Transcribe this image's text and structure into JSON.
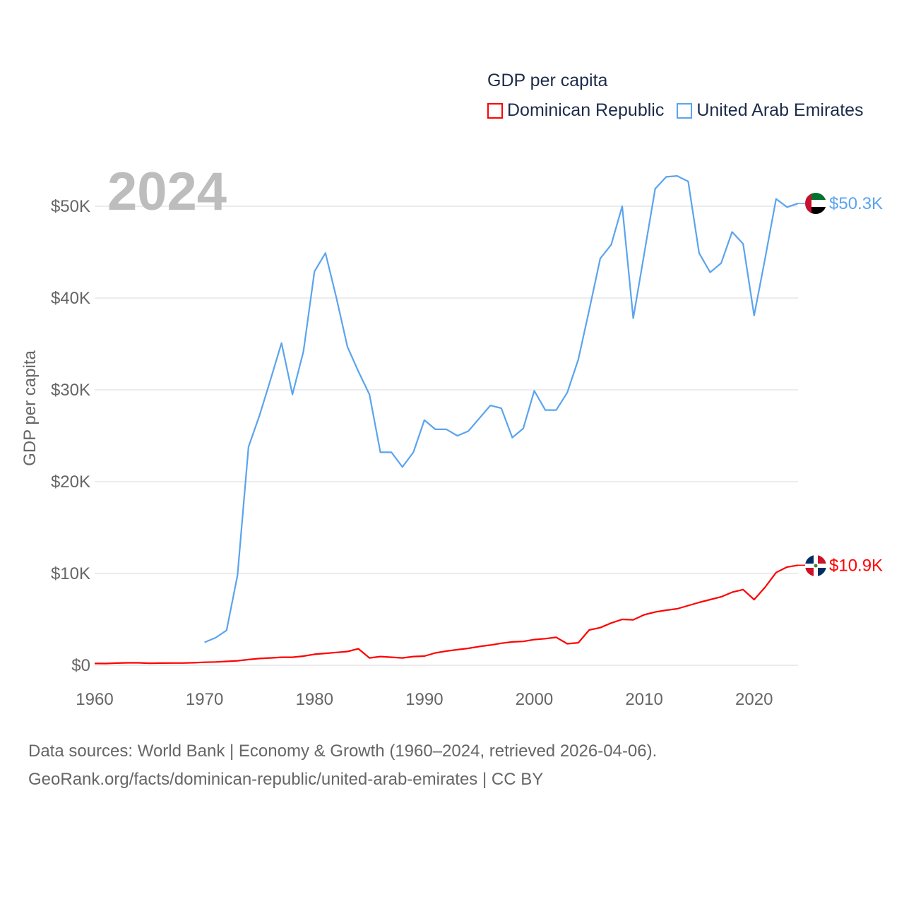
{
  "legend": {
    "title": "GDP per capita",
    "items": [
      {
        "label": "Dominican Republic",
        "color": "#ff0000"
      },
      {
        "label": "United Arab Emirates",
        "color": "#5aa4ee"
      }
    ]
  },
  "year_label": "2024",
  "footer": {
    "line1": "Data sources: World Bank | Economy & Growth (1960–2024, retrieved 2026-04-06).",
    "line2": "GeoRank.org/facts/dominican-republic/united-arab-emirates | CC BY"
  },
  "chart_data": {
    "type": "line",
    "title": "GDP per capita",
    "xlabel": "",
    "ylabel": "GDP per capita",
    "xlim": [
      1960,
      2024
    ],
    "ylim": [
      0,
      55000
    ],
    "grid": true,
    "legend_position": "top-right",
    "x_ticks": [
      1960,
      1970,
      1980,
      1990,
      2000,
      2010,
      2020
    ],
    "x_tick_labels": [
      "1960",
      "1970",
      "1980",
      "1990",
      "2000",
      "2010",
      "2020"
    ],
    "y_ticks": [
      0,
      10000,
      20000,
      30000,
      40000,
      50000
    ],
    "y_tick_labels": [
      "$0",
      "$10K",
      "$20K",
      "$30K",
      "$40K",
      "$50K"
    ],
    "series": [
      {
        "name": "Dominican Republic",
        "color": "#ff0000",
        "end_label": "$10.9K",
        "start_year": 1960,
        "values": [
          200,
          190,
          240,
          270,
          270,
          220,
          240,
          250,
          250,
          280,
          330,
          360,
          420,
          490,
          620,
          740,
          800,
          880,
          880,
          1000,
          1200,
          1300,
          1400,
          1500,
          1800,
          800,
          950,
          880,
          800,
          950,
          1000,
          1350,
          1550,
          1700,
          1850,
          2050,
          2200,
          2400,
          2550,
          2600,
          2800,
          2900,
          3050,
          2350,
          2450,
          3850,
          4100,
          4600,
          5000,
          4950,
          5500,
          5800,
          6000,
          6150,
          6500,
          6850,
          7150,
          7450,
          7950,
          8250,
          7150,
          8500,
          10100,
          10700,
          10900
        ]
      },
      {
        "name": "United Arab Emirates",
        "color": "#5aa4ee",
        "end_label": "$50.3K",
        "start_year": 1970,
        "values": [
          2500,
          3000,
          3800,
          9800,
          23800,
          27200,
          31100,
          35100,
          29500,
          34200,
          42900,
          44900,
          40000,
          34700,
          32000,
          29500,
          23200,
          23200,
          21600,
          23200,
          26700,
          25700,
          25700,
          25000,
          25500,
          26900,
          28300,
          28000,
          24800,
          25800,
          29900,
          27800,
          27800,
          29700,
          33300,
          38700,
          44300,
          45800,
          50000,
          37800,
          44800,
          51900,
          53200,
          53300,
          52700,
          44900,
          42800,
          43800,
          47200,
          45900,
          38100,
          44300,
          50800,
          49900,
          50300
        ]
      }
    ]
  }
}
